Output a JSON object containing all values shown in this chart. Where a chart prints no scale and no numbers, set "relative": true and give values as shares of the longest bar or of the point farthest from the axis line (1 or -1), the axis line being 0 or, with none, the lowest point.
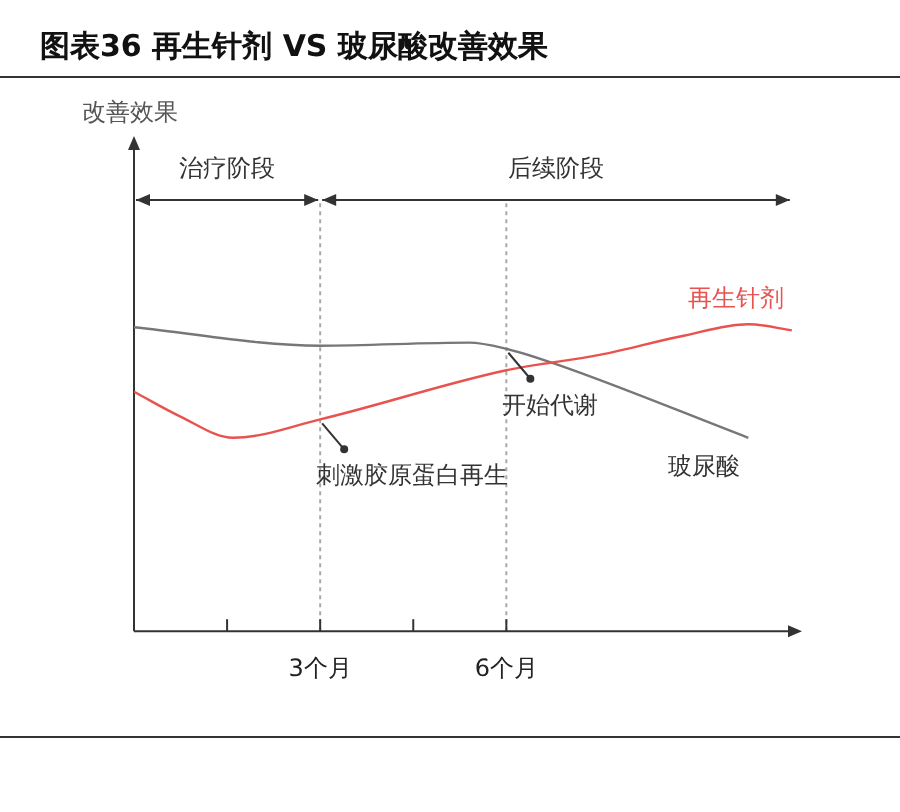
{
  "chart_data": {
    "type": "line",
    "title": "图表36 再生针剂 VS 玻尿酸改善效果",
    "relative": true,
    "legend": false,
    "grid": false,
    "tick_labels": "x",
    "marker": "none",
    "xlim": [
      0,
      10.7
    ],
    "xticks": [
      {
        "value": 1.5,
        "label": null
      },
      {
        "value": 3,
        "label": "3个月"
      },
      {
        "value": 4.5,
        "label": null
      },
      {
        "value": 6,
        "label": "6个月"
      }
    ],
    "series": [
      {
        "name": "再生针剂",
        "color": "#e8524f",
        "x": [
          0,
          0.74,
          1.6,
          3,
          6,
          7.5,
          8.8,
          9.9,
          10.6
        ],
        "values": [
          0.78,
          0.7,
          0.63,
          0.69,
          0.85,
          0.9,
          0.96,
          1,
          0.98
        ]
      },
      {
        "name": "玻尿酸",
        "color": "#777777",
        "x": [
          0,
          3,
          5.4,
          6,
          6.8,
          9.9
        ],
        "values": [
          0.99,
          0.93,
          0.94,
          0.92,
          0.87,
          0.63
        ]
      }
    ],
    "ref_lines": [
      {
        "axis": "x",
        "value": 3,
        "line_style": "dotted",
        "color": "#aaaaaa"
      },
      {
        "axis": "x",
        "value": 6,
        "line_style": "dotted",
        "color": "#aaaaaa"
      }
    ],
    "annotations": [
      "改善效果",
      "治疗阶段",
      "后续阶段",
      {
        "text": "刺激胶原蛋白再生",
        "x": 3,
        "y": 0.69
      },
      {
        "text": "开始代谢",
        "x": 6,
        "y": 0.92
      }
    ]
  }
}
